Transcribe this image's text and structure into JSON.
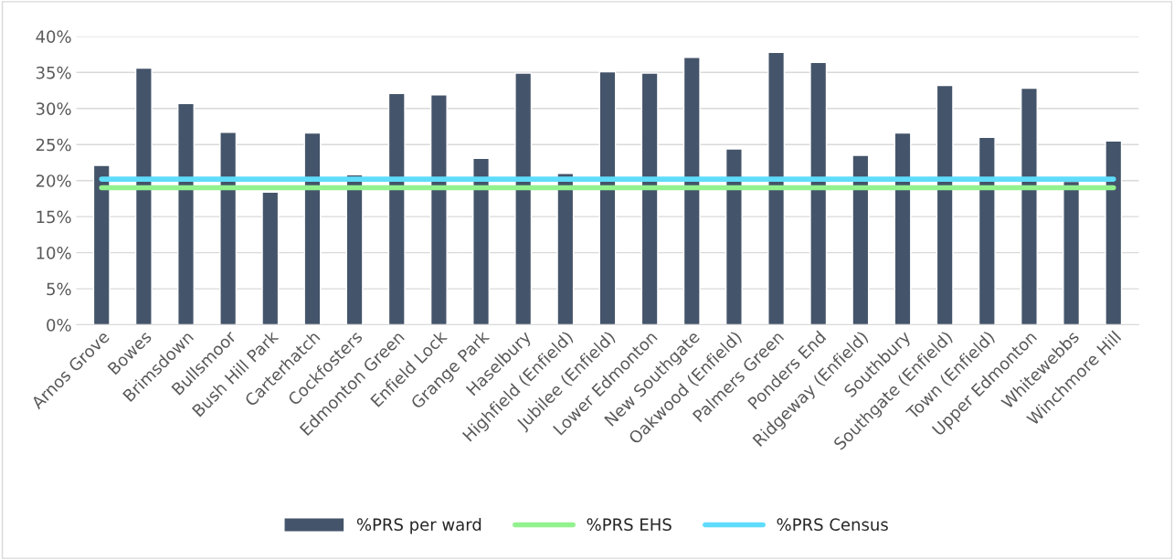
{
  "chart_data": {
    "type": "bar",
    "categories": [
      "Arnos Grove",
      "Bowes",
      "Brimsdown",
      "Bullsmoor",
      "Bush Hill Park",
      "Carterhatch",
      "Cockfosters",
      "Edmonton Green",
      "Enfield Lock",
      "Grange Park",
      "Haselbury",
      "Highfield (Enfield)",
      "Jubilee (Enfield)",
      "Lower Edmonton",
      "New Southgate",
      "Oakwood (Enfield)",
      "Palmers Green",
      "Ponders End",
      "Ridgeway (Enfield)",
      "Southbury",
      "Southgate (Enfield)",
      "Town (Enfield)",
      "Upper Edmonton",
      "Whitewebbs",
      "Winchmore Hill"
    ],
    "series": [
      {
        "name": "%PRS per ward",
        "color": "#44546a",
        "values": [
          22.1,
          35.6,
          30.7,
          26.7,
          18.4,
          26.6,
          20.8,
          32.1,
          31.9,
          23.1,
          34.9,
          21.0,
          35.1,
          34.9,
          37.1,
          24.4,
          37.8,
          36.4,
          23.5,
          26.6,
          33.2,
          26.0,
          32.8,
          19.9,
          25.5
        ]
      },
      {
        "name": "%PRS EHS",
        "type": "line",
        "color": "#92f28e",
        "values": [
          19.0,
          19.0,
          19.0,
          19.0,
          19.0,
          19.0,
          19.0,
          19.0,
          19.0,
          19.0,
          19.0,
          19.0,
          19.0,
          19.0,
          19.0,
          19.0,
          19.0,
          19.0,
          19.0,
          19.0,
          19.0,
          19.0,
          19.0,
          19.0,
          19.0
        ]
      },
      {
        "name": "%PRS Census",
        "type": "line",
        "color": "#5fdcfb",
        "values": [
          20.2,
          20.2,
          20.2,
          20.2,
          20.2,
          20.2,
          20.2,
          20.2,
          20.2,
          20.2,
          20.2,
          20.2,
          20.2,
          20.2,
          20.2,
          20.2,
          20.2,
          20.2,
          20.2,
          20.2,
          20.2,
          20.2,
          20.2,
          20.2,
          20.2
        ]
      }
    ],
    "ylim": [
      0,
      40
    ],
    "yticks": [
      {
        "value": 0,
        "label": "0%"
      },
      {
        "value": 5,
        "label": "5%"
      },
      {
        "value": 10,
        "label": "10%"
      },
      {
        "value": 15,
        "label": "15%"
      },
      {
        "value": 20,
        "label": "20%"
      },
      {
        "value": 25,
        "label": "25%"
      },
      {
        "value": 30,
        "label": "30%"
      },
      {
        "value": 35,
        "label": "35%"
      },
      {
        "value": 40,
        "label": "40%"
      }
    ],
    "grid": "y",
    "legend": "bottom"
  }
}
